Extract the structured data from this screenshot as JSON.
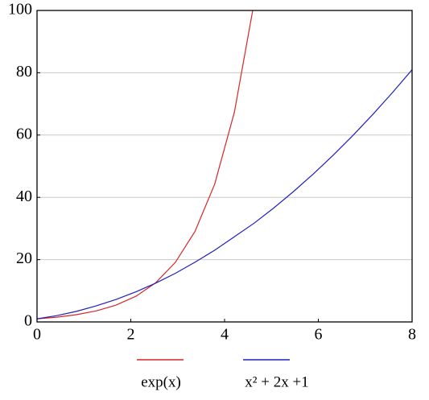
{
  "chart_data": {
    "type": "line",
    "x": [
      0,
      0.42,
      0.84,
      1.26,
      1.68,
      2.11,
      2.53,
      2.95,
      3.37,
      3.79,
      4.21,
      4.63,
      5.05,
      5.47,
      5.89,
      6.32,
      6.74,
      7.16,
      7.58,
      8
    ],
    "series": [
      {
        "name": "exp(x)",
        "color": "#d62728",
        "values": [
          1,
          1.52,
          2.32,
          3.53,
          5.37,
          8.25,
          12.55,
          19.11,
          29.08,
          44.26,
          67.36,
          102.5,
          null,
          null,
          null,
          null,
          null,
          null,
          null,
          null
        ]
      },
      {
        "name": "x² + 2x +1",
        "color": "#1f1fbf",
        "values": [
          1,
          2.02,
          3.39,
          5.15,
          7.18,
          9.67,
          12.46,
          15.6,
          19.18,
          23.04,
          27.35,
          31.7,
          36.6,
          41.86,
          47.47,
          53.58,
          59.91,
          66.59,
          73.62,
          81
        ]
      }
    ],
    "xlim": [
      0,
      8
    ],
    "xticks": [
      0,
      2,
      4,
      6,
      8
    ],
    "ylim": [
      0,
      100
    ],
    "yticks": [
      0,
      20,
      40,
      60,
      80,
      100
    ],
    "grid": true,
    "legend": "bottom"
  }
}
